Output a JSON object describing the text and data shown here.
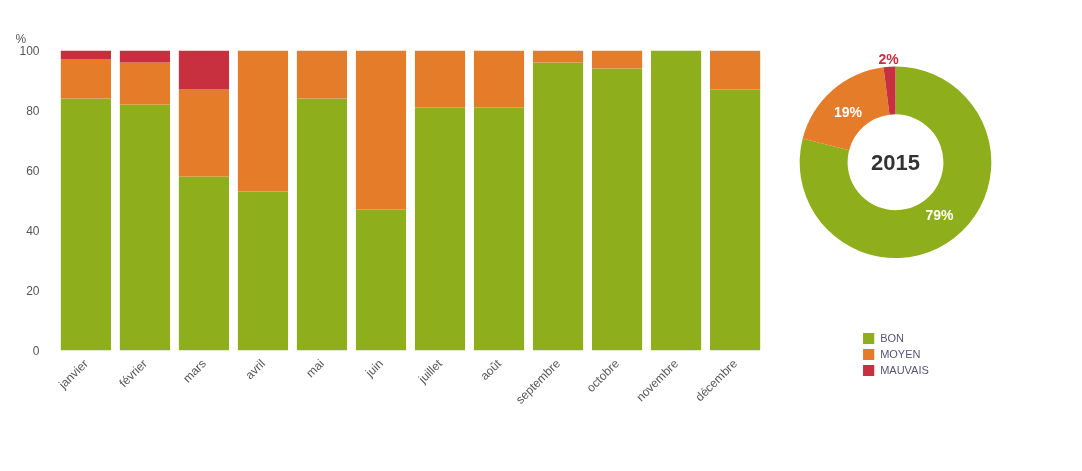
{
  "chart_data": [
    {
      "type": "bar",
      "stacked": true,
      "ylabel": "%",
      "categories": [
        "janvier",
        "février",
        "mars",
        "avril",
        "mai",
        "juin",
        "juillet",
        "août",
        "septembre",
        "octobre",
        "novembre",
        "décembre"
      ],
      "series": [
        {
          "color": "#8fae1b",
          "values": [
            84,
            82,
            58,
            53,
            84,
            47,
            81,
            81,
            96,
            94,
            100,
            87
          ]
        },
        {
          "color": "#e57c2a",
          "values": [
            13,
            14,
            29,
            47,
            16,
            53,
            19,
            19,
            4,
            6,
            0,
            13
          ]
        },
        {
          "color": "#c8303f",
          "values": [
            3,
            4,
            13,
            0,
            0,
            0,
            0,
            0,
            0,
            0,
            0,
            0
          ]
        }
      ],
      "ylim": [
        0,
        100
      ],
      "yticks": [
        0,
        20,
        40,
        60,
        80,
        100
      ],
      "grid": false
    },
    {
      "type": "donut",
      "title": "2015",
      "categories": [
        "BON",
        "MOYEN",
        "MAUVAIS"
      ],
      "values": [
        79,
        19,
        2
      ],
      "colors": [
        "#8fae1b",
        "#e57c2a",
        "#c8303f"
      ],
      "value_labels": [
        "79%",
        "19%",
        "2%"
      ],
      "legend": "bottom"
    }
  ]
}
